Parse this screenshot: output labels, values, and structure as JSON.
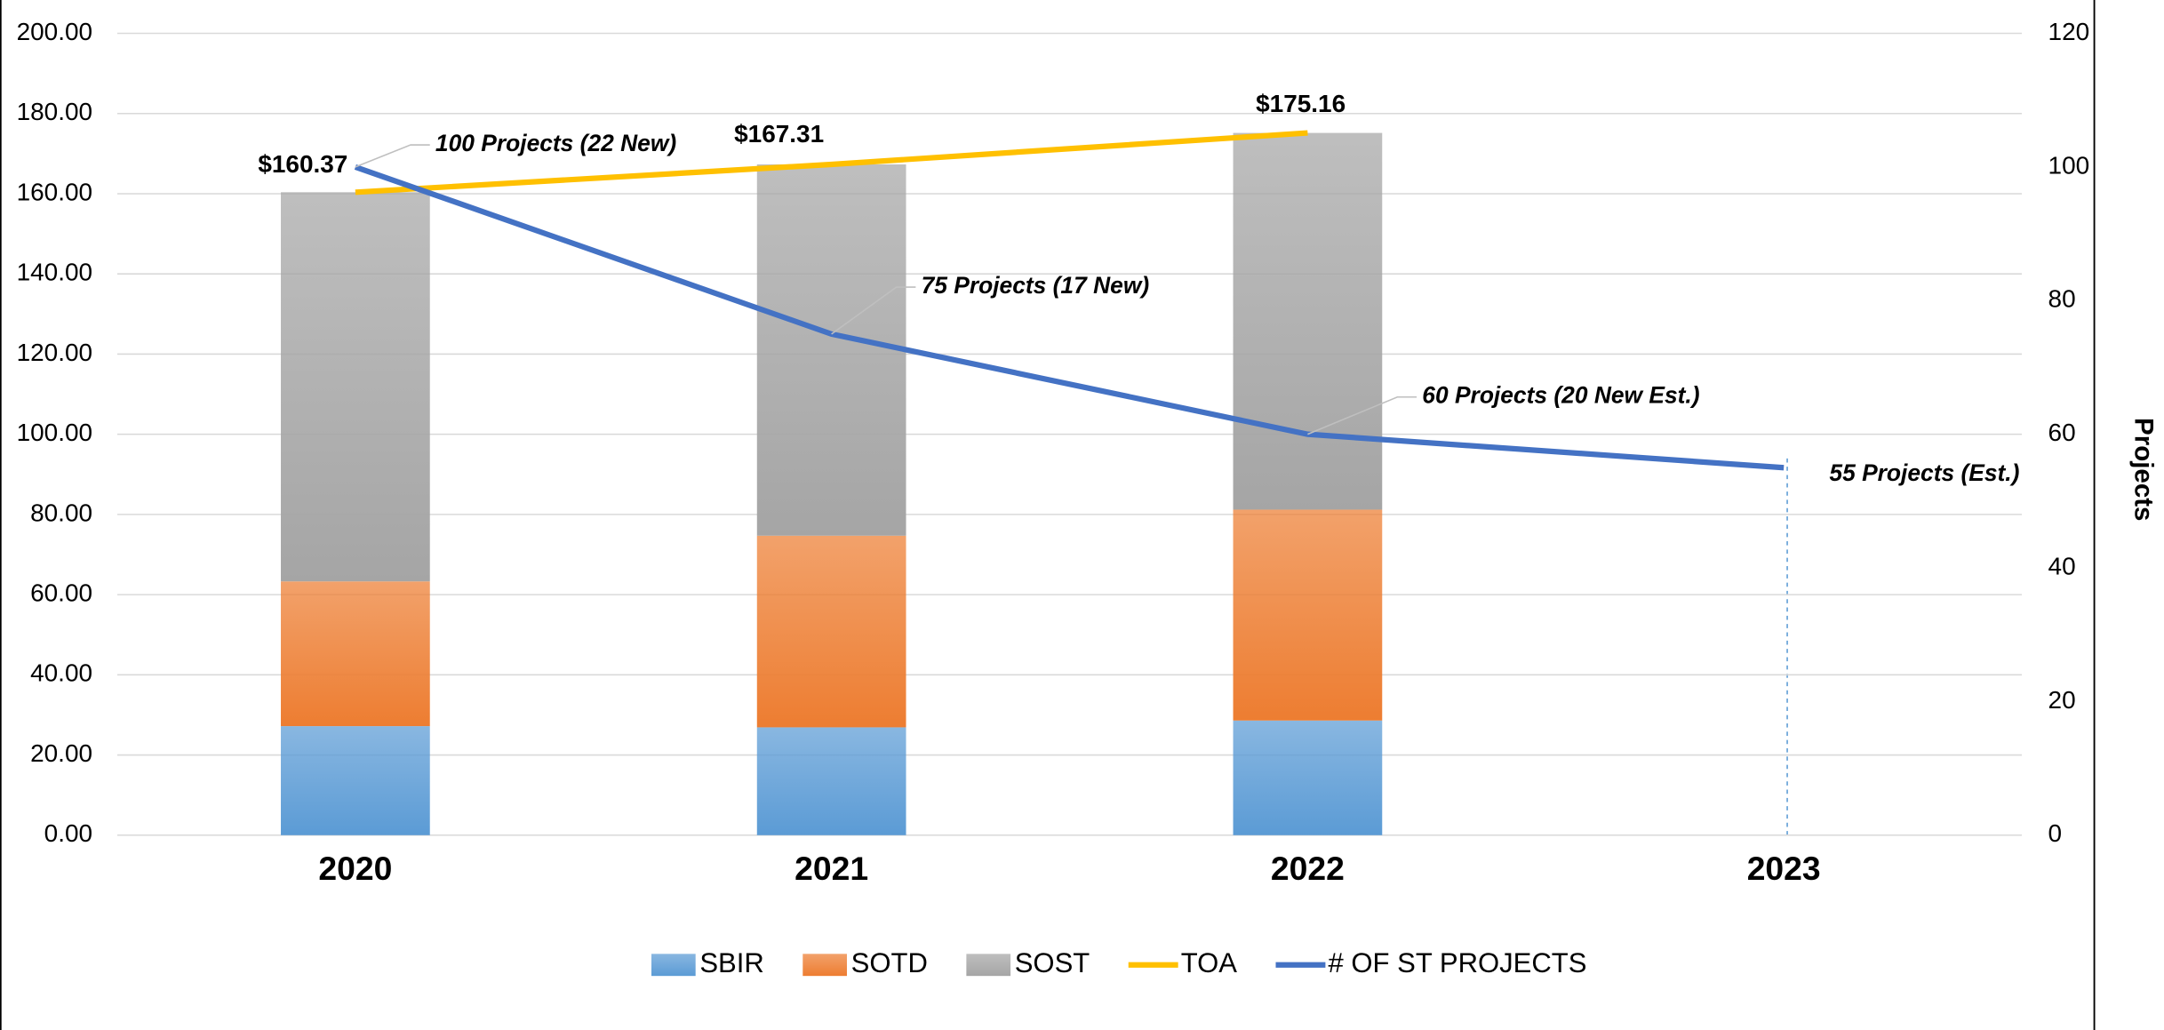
{
  "chart_data": {
    "type": "bar",
    "stacked": true,
    "categories": [
      "2020",
      "2021",
      "2022",
      "2023"
    ],
    "series": [
      {
        "name": "SBIR",
        "type": "bar",
        "color": "#5b9bd5",
        "values": [
          27.2,
          26.9,
          28.6,
          null
        ]
      },
      {
        "name": "SOTD",
        "type": "bar",
        "color": "#ed7d31",
        "values": [
          36.1,
          47.8,
          52.6,
          null
        ]
      },
      {
        "name": "SOST",
        "type": "bar",
        "color": "#a5a5a5",
        "values": [
          97.07,
          92.61,
          93.96,
          null
        ]
      },
      {
        "name": "TOA",
        "type": "line",
        "color": "#ffc000",
        "values": [
          160.37,
          167.31,
          175.16,
          null
        ],
        "value_labels": [
          "$160.37",
          "$167.31",
          "$175.16",
          null
        ]
      },
      {
        "name": "# OF ST PROJECTS",
        "type": "line",
        "axis": "y2",
        "color": "#4472c4",
        "values": [
          100,
          75,
          60,
          55
        ],
        "value_labels": [
          "100 Projects (22 New)",
          "75 Projects (17 New)",
          "60 Projects (20 New Est.)",
          "55 Projects (Est.)"
        ]
      }
    ],
    "ylim": [
      0,
      200
    ],
    "yticks": [
      {
        "value": 0,
        "label": "0.00"
      },
      {
        "value": 20,
        "label": "20.00"
      },
      {
        "value": 40,
        "label": "40.00"
      },
      {
        "value": 60,
        "label": "60.00"
      },
      {
        "value": 80,
        "label": "80.00"
      },
      {
        "value": 100,
        "label": "100.00"
      },
      {
        "value": 120,
        "label": "120.00"
      },
      {
        "value": 140,
        "label": "140.00"
      },
      {
        "value": 160,
        "label": "160.00"
      },
      {
        "value": 180,
        "label": "180.00"
      },
      {
        "value": 200,
        "label": "200.00"
      }
    ],
    "y2lim": [
      0,
      120
    ],
    "y2ticks": [
      0,
      20,
      40,
      60,
      80,
      100,
      120
    ],
    "y2label": "Projects",
    "grid": true,
    "legend": "bottom"
  }
}
